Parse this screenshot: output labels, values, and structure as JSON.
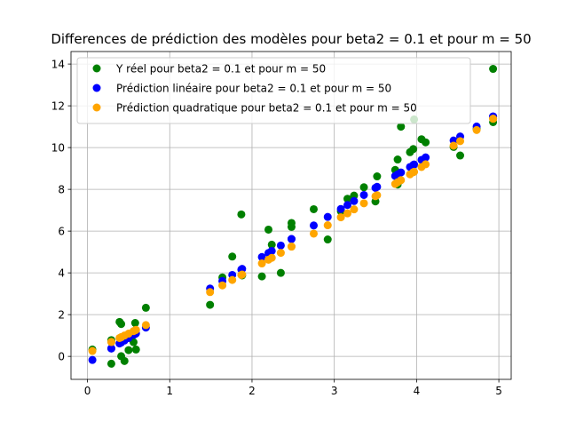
{
  "chart_data": {
    "type": "scatter",
    "title": "Differences de prédiction des modèles pour beta2 = 0.1 et pour m = 50",
    "xlabel": "",
    "ylabel": "",
    "xlim": [
      -0.2,
      5.15
    ],
    "ylim": [
      -1.1,
      14.6
    ],
    "xticks": [
      0,
      1,
      2,
      3,
      4,
      5
    ],
    "yticks": [
      0,
      2,
      4,
      6,
      8,
      10,
      12,
      14
    ],
    "grid": true,
    "legend_position": "top-left",
    "series": [
      {
        "name": "Y réel pour beta2 = 0.1 et pour m = 50",
        "color": "#008000",
        "points": [
          [
            0.06,
            0.33
          ],
          [
            0.29,
            0.78
          ],
          [
            0.29,
            -0.35
          ],
          [
            0.39,
            1.65
          ],
          [
            0.41,
            1.55
          ],
          [
            0.41,
            0.01
          ],
          [
            0.45,
            -0.22
          ],
          [
            0.5,
            0.3
          ],
          [
            0.56,
            0.68
          ],
          [
            0.58,
            1.6
          ],
          [
            0.59,
            0.33
          ],
          [
            0.71,
            2.33
          ],
          [
            1.49,
            2.47
          ],
          [
            1.64,
            3.78
          ],
          [
            1.76,
            4.78
          ],
          [
            1.87,
            6.8
          ],
          [
            1.88,
            3.88
          ],
          [
            2.12,
            3.83
          ],
          [
            2.2,
            6.07
          ],
          [
            2.24,
            5.35
          ],
          [
            2.35,
            4.0
          ],
          [
            2.48,
            6.39
          ],
          [
            2.48,
            6.2
          ],
          [
            2.75,
            7.05
          ],
          [
            2.92,
            5.6
          ],
          [
            3.08,
            6.95
          ],
          [
            3.16,
            7.55
          ],
          [
            3.24,
            7.7
          ],
          [
            3.36,
            8.1
          ],
          [
            3.5,
            7.42
          ],
          [
            3.52,
            8.62
          ],
          [
            3.74,
            8.93
          ],
          [
            3.77,
            8.23
          ],
          [
            3.77,
            9.43
          ],
          [
            3.81,
            11.0
          ],
          [
            3.92,
            9.78
          ],
          [
            3.96,
            9.93
          ],
          [
            3.97,
            11.35
          ],
          [
            4.06,
            10.4
          ],
          [
            4.11,
            10.25
          ],
          [
            4.45,
            10.03
          ],
          [
            4.53,
            9.62
          ],
          [
            4.73,
            10.9
          ],
          [
            4.93,
            13.77
          ],
          [
            4.93,
            11.22
          ]
        ]
      },
      {
        "name": "Prédiction linéaire pour beta2 = 0.1 et pour m = 50",
        "color": "#0000ff",
        "points": [
          [
            0.06,
            -0.17
          ],
          [
            0.29,
            0.38
          ],
          [
            0.29,
            0.38
          ],
          [
            0.39,
            0.62
          ],
          [
            0.41,
            0.67
          ],
          [
            0.41,
            0.67
          ],
          [
            0.45,
            0.76
          ],
          [
            0.5,
            0.88
          ],
          [
            0.56,
            1.03
          ],
          [
            0.58,
            1.07
          ],
          [
            0.59,
            1.1
          ],
          [
            0.71,
            1.38
          ],
          [
            1.49,
            3.25
          ],
          [
            1.64,
            3.61
          ],
          [
            1.76,
            3.9
          ],
          [
            1.87,
            4.16
          ],
          [
            1.88,
            4.19
          ],
          [
            2.12,
            4.76
          ],
          [
            2.2,
            4.95
          ],
          [
            2.24,
            5.05
          ],
          [
            2.35,
            5.31
          ],
          [
            2.48,
            5.62
          ],
          [
            2.48,
            5.62
          ],
          [
            2.75,
            6.27
          ],
          [
            2.92,
            6.68
          ],
          [
            3.08,
            7.06
          ],
          [
            3.16,
            7.25
          ],
          [
            3.24,
            7.44
          ],
          [
            3.36,
            7.73
          ],
          [
            3.5,
            8.07
          ],
          [
            3.52,
            8.12
          ],
          [
            3.74,
            8.64
          ],
          [
            3.77,
            8.71
          ],
          [
            3.77,
            8.71
          ],
          [
            3.81,
            8.81
          ],
          [
            3.92,
            9.07
          ],
          [
            3.96,
            9.17
          ],
          [
            3.97,
            9.19
          ],
          [
            4.06,
            9.41
          ],
          [
            4.11,
            9.53
          ],
          [
            4.45,
            10.34
          ],
          [
            4.53,
            10.53
          ],
          [
            4.73,
            11.01
          ],
          [
            4.93,
            11.49
          ],
          [
            4.93,
            11.49
          ]
        ]
      },
      {
        "name": "Prédiction quadratique pour beta2 = 0.1 et pour m = 50",
        "color": "#ffa500",
        "points": [
          [
            0.06,
            0.26
          ],
          [
            0.29,
            0.69
          ],
          [
            0.29,
            0.69
          ],
          [
            0.39,
            0.88
          ],
          [
            0.41,
            0.92
          ],
          [
            0.41,
            0.92
          ],
          [
            0.45,
            1.0
          ],
          [
            0.5,
            1.09
          ],
          [
            0.56,
            1.21
          ],
          [
            0.58,
            1.25
          ],
          [
            0.59,
            1.27
          ],
          [
            0.71,
            1.5
          ],
          [
            1.49,
            3.08
          ],
          [
            1.64,
            3.4
          ],
          [
            1.76,
            3.66
          ],
          [
            1.87,
            3.9
          ],
          [
            1.88,
            3.92
          ],
          [
            2.12,
            4.45
          ],
          [
            2.2,
            4.63
          ],
          [
            2.24,
            4.72
          ],
          [
            2.35,
            4.96
          ],
          [
            2.48,
            5.26
          ],
          [
            2.48,
            5.26
          ],
          [
            2.75,
            5.88
          ],
          [
            2.92,
            6.28
          ],
          [
            3.08,
            6.66
          ],
          [
            3.16,
            6.85
          ],
          [
            3.24,
            7.04
          ],
          [
            3.36,
            7.33
          ],
          [
            3.5,
            7.67
          ],
          [
            3.52,
            7.72
          ],
          [
            3.74,
            8.26
          ],
          [
            3.77,
            8.34
          ],
          [
            3.77,
            8.34
          ],
          [
            3.81,
            8.44
          ],
          [
            3.92,
            8.72
          ],
          [
            3.96,
            8.82
          ],
          [
            3.97,
            8.84
          ],
          [
            4.06,
            9.07
          ],
          [
            4.11,
            9.2
          ],
          [
            4.45,
            10.09
          ],
          [
            4.53,
            10.31
          ],
          [
            4.73,
            10.84
          ],
          [
            4.93,
            11.38
          ],
          [
            4.93,
            11.38
          ]
        ]
      }
    ]
  }
}
